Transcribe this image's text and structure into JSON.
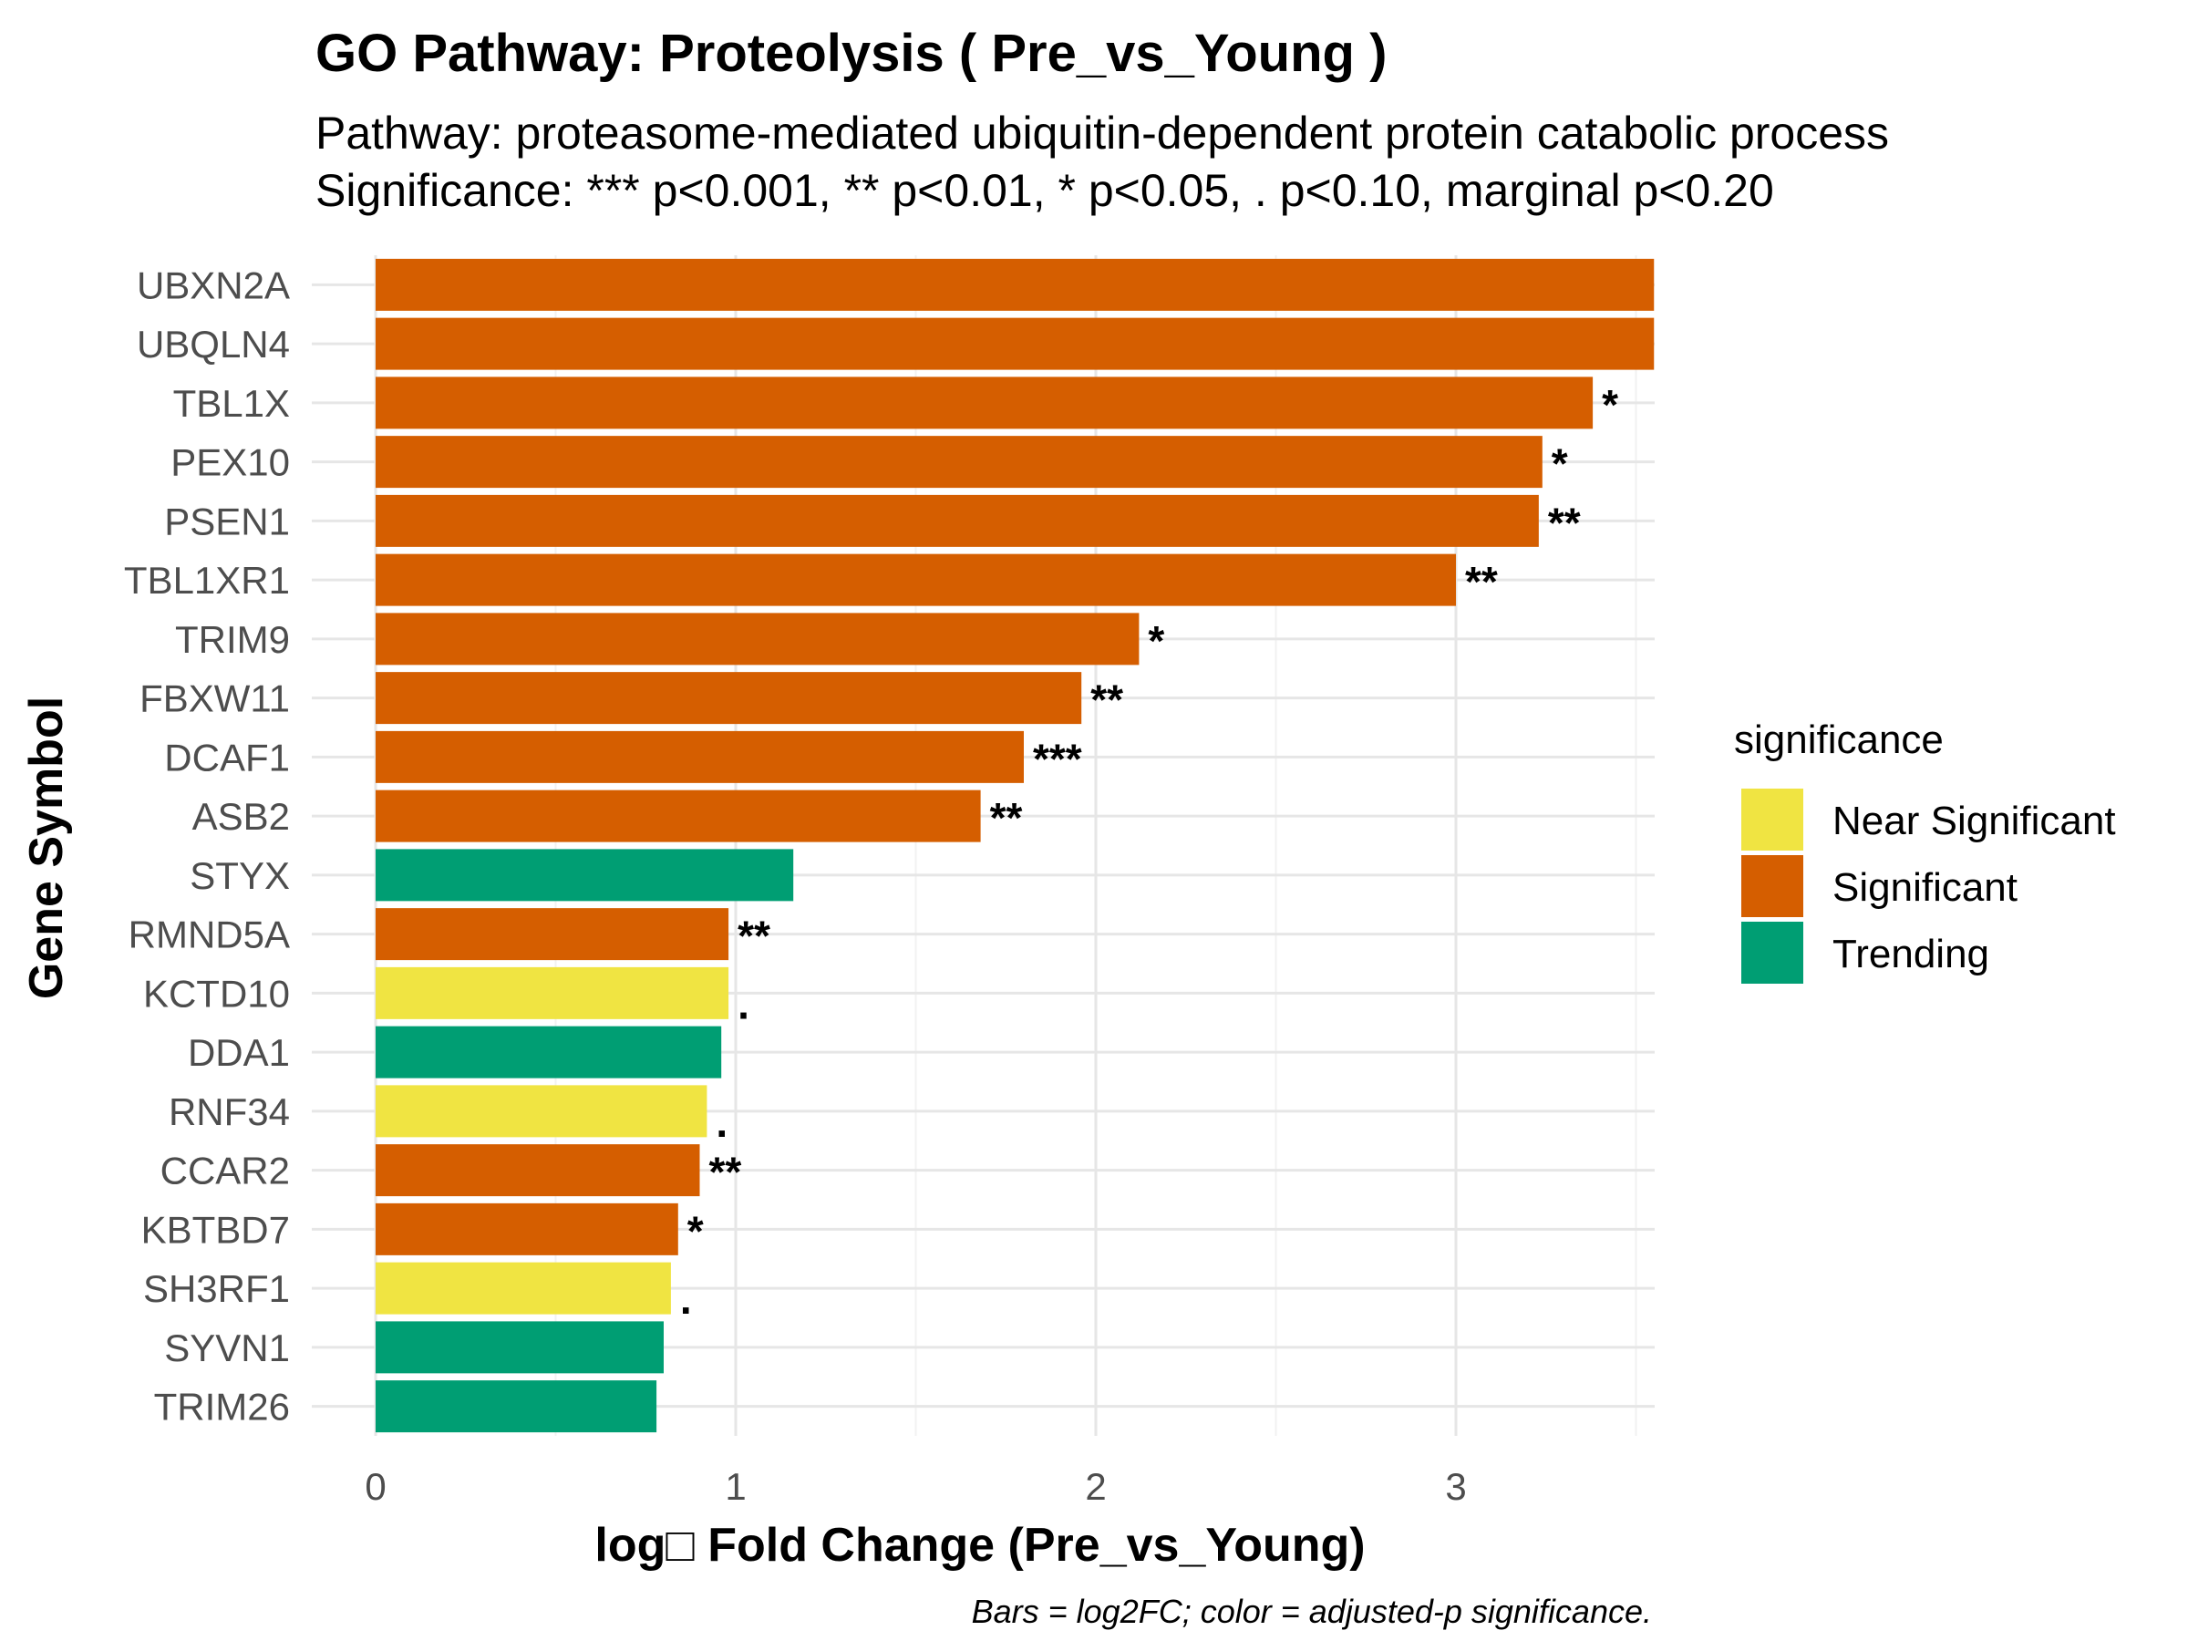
{
  "chart_data": {
    "type": "bar",
    "orientation": "horizontal",
    "title": "GO Pathway: Proteolysis ( Pre_vs_Young )",
    "subtitle_lines": [
      "Pathway: proteasome-mediated ubiquitin-dependent protein catabolic process",
      "Significance: *** p<0.001, ** p<0.01, * p<0.05, . p<0.10, marginal p<0.20"
    ],
    "xlabel": "log□ Fold Change (Pre_vs_Young)",
    "ylabel": "Gene Symbol",
    "caption": "Bars = log2FC; color = adjusted-p significance.",
    "xlim": [
      0,
      3.55
    ],
    "x_ticks": [
      0,
      1,
      2,
      3
    ],
    "grid": true,
    "legend": {
      "title": "significance",
      "position": "right",
      "entries": [
        {
          "label": "Near Significant",
          "color": "#F0E442"
        },
        {
          "label": "Significant",
          "color": "#D55E00"
        },
        {
          "label": "Trending",
          "color": "#009E73"
        }
      ]
    },
    "bars": [
      {
        "gene": "UBXN2A",
        "value": 3.55,
        "significance": "Significant",
        "label": ""
      },
      {
        "gene": "UBQLN4",
        "value": 3.55,
        "significance": "Significant",
        "label": ""
      },
      {
        "gene": "TBL1X",
        "value": 3.38,
        "significance": "Significant",
        "label": "*"
      },
      {
        "gene": "PEX10",
        "value": 3.24,
        "significance": "Significant",
        "label": "*"
      },
      {
        "gene": "PSEN1",
        "value": 3.23,
        "significance": "Significant",
        "label": "**"
      },
      {
        "gene": "TBL1XR1",
        "value": 3.0,
        "significance": "Significant",
        "label": "**"
      },
      {
        "gene": "TRIM9",
        "value": 2.12,
        "significance": "Significant",
        "label": "*"
      },
      {
        "gene": "FBXW11",
        "value": 1.96,
        "significance": "Significant",
        "label": "**"
      },
      {
        "gene": "DCAF1",
        "value": 1.8,
        "significance": "Significant",
        "label": "***"
      },
      {
        "gene": "ASB2",
        "value": 1.68,
        "significance": "Significant",
        "label": "**"
      },
      {
        "gene": "STYX",
        "value": 1.16,
        "significance": "Trending",
        "label": ""
      },
      {
        "gene": "RMND5A",
        "value": 0.98,
        "significance": "Significant",
        "label": "**"
      },
      {
        "gene": "KCTD10",
        "value": 0.98,
        "significance": "Near Significant",
        "label": "."
      },
      {
        "gene": "DDA1",
        "value": 0.96,
        "significance": "Trending",
        "label": ""
      },
      {
        "gene": "RNF34",
        "value": 0.92,
        "significance": "Near Significant",
        "label": "."
      },
      {
        "gene": "CCAR2",
        "value": 0.9,
        "significance": "Significant",
        "label": "**"
      },
      {
        "gene": "KBTBD7",
        "value": 0.84,
        "significance": "Significant",
        "label": "*"
      },
      {
        "gene": "SH3RF1",
        "value": 0.82,
        "significance": "Near Significant",
        "label": "."
      },
      {
        "gene": "SYVN1",
        "value": 0.8,
        "significance": "Trending",
        "label": ""
      },
      {
        "gene": "TRIM26",
        "value": 0.78,
        "significance": "Trending",
        "label": ""
      }
    ]
  }
}
